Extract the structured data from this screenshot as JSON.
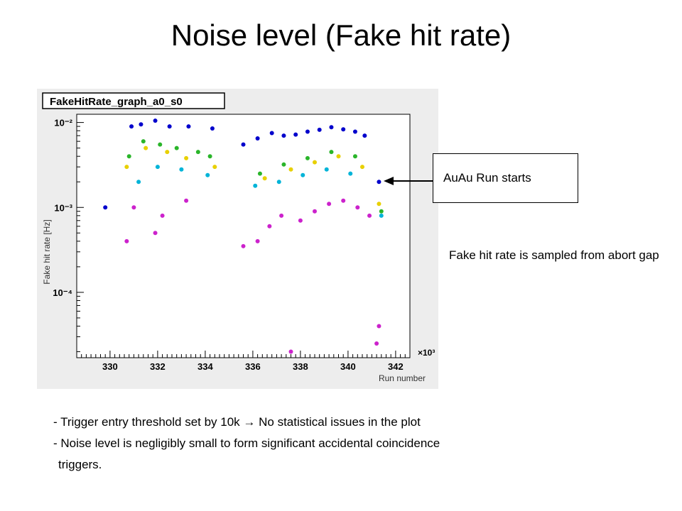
{
  "slide": {
    "title": "Noise level (Fake hit rate)",
    "callout": "AuAu Run starts",
    "note": "Fake hit rate is sampled from abort gap",
    "bullets": [
      "- Trigger entry threshold set by 10k → No statistical issues in the plot",
      "- Noise level is negligibly small to form significant accidental coincidence",
      "triggers."
    ]
  },
  "chart_data": {
    "type": "scatter",
    "title": "FakeHitRate_graph_a0_s0",
    "xlabel": "Run number",
    "ylabel": "Fake hit rate [Hz]",
    "x_unit_suffix": "×10³",
    "x_ticks": [
      "330",
      "332",
      "334",
      "336",
      "338",
      "340",
      "342"
    ],
    "y_ticks": [
      "10⁻⁴",
      "10⁻³",
      "10⁻²"
    ],
    "xlim": [
      328.6,
      342.6
    ],
    "ylim": [
      1.7e-05,
      0.0125
    ],
    "y_scale": "log",
    "grid": false,
    "legend": "none",
    "series": [
      {
        "color": "#0000cc",
        "points": [
          [
            329.8,
            0.001
          ],
          [
            330.9,
            0.009
          ],
          [
            331.3,
            0.0095
          ],
          [
            331.9,
            0.0105
          ],
          [
            332.5,
            0.009
          ],
          [
            333.3,
            0.009
          ],
          [
            334.3,
            0.0085
          ],
          [
            335.6,
            0.0055
          ],
          [
            336.2,
            0.0065
          ],
          [
            336.8,
            0.0075
          ],
          [
            337.3,
            0.007
          ],
          [
            337.8,
            0.0072
          ],
          [
            338.3,
            0.0078
          ],
          [
            338.8,
            0.0082
          ],
          [
            339.3,
            0.0088
          ],
          [
            339.8,
            0.0083
          ],
          [
            340.3,
            0.0078
          ],
          [
            340.7,
            0.007
          ],
          [
            341.3,
            0.002
          ]
        ]
      },
      {
        "color": "#2ab52a",
        "points": [
          [
            330.8,
            0.004
          ],
          [
            331.4,
            0.006
          ],
          [
            332.1,
            0.0055
          ],
          [
            332.8,
            0.005
          ],
          [
            333.7,
            0.0045
          ],
          [
            334.2,
            0.004
          ],
          [
            336.3,
            0.0025
          ],
          [
            337.3,
            0.0032
          ],
          [
            338.3,
            0.0038
          ],
          [
            339.3,
            0.0045
          ],
          [
            340.3,
            0.004
          ],
          [
            341.4,
            0.0009
          ]
        ]
      },
      {
        "color": "#e8d000",
        "points": [
          [
            330.7,
            0.003
          ],
          [
            331.5,
            0.005
          ],
          [
            332.4,
            0.0045
          ],
          [
            333.2,
            0.0038
          ],
          [
            334.4,
            0.003
          ],
          [
            336.5,
            0.0022
          ],
          [
            337.6,
            0.0028
          ],
          [
            338.6,
            0.0034
          ],
          [
            339.6,
            0.004
          ],
          [
            340.6,
            0.003
          ],
          [
            341.3,
            0.0011
          ]
        ]
      },
      {
        "color": "#00b4d8",
        "points": [
          [
            331.2,
            0.002
          ],
          [
            332.0,
            0.003
          ],
          [
            333.0,
            0.0028
          ],
          [
            334.1,
            0.0024
          ],
          [
            336.1,
            0.0018
          ],
          [
            337.1,
            0.002
          ],
          [
            338.1,
            0.0024
          ],
          [
            339.1,
            0.0028
          ],
          [
            340.1,
            0.0025
          ],
          [
            341.4,
            0.0008
          ]
        ]
      },
      {
        "color": "#cc22cc",
        "points": [
          [
            330.7,
            0.0004
          ],
          [
            331.0,
            0.001
          ],
          [
            331.9,
            0.0005
          ],
          [
            332.2,
            0.0008
          ],
          [
            333.2,
            0.0012
          ],
          [
            335.6,
            0.00035
          ],
          [
            336.2,
            0.0004
          ],
          [
            336.7,
            0.0006
          ],
          [
            337.2,
            0.0008
          ],
          [
            337.6,
            2e-05
          ],
          [
            338.0,
            0.0007
          ],
          [
            338.6,
            0.0009
          ],
          [
            339.2,
            0.0011
          ],
          [
            339.8,
            0.0012
          ],
          [
            340.4,
            0.001
          ],
          [
            340.9,
            0.0008
          ],
          [
            341.2,
            2.5e-05
          ],
          [
            341.3,
            4e-05
          ]
        ]
      }
    ]
  }
}
